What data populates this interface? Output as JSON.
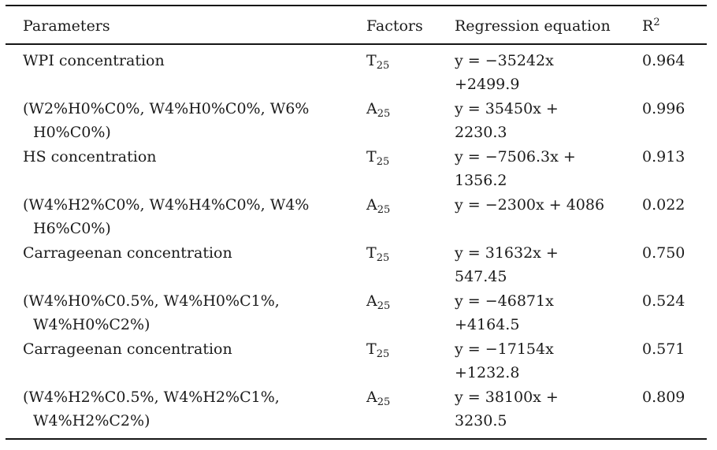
{
  "page": {
    "background": "#ffffff",
    "text_color": "#1b1b1b",
    "rule_color": "#151515"
  },
  "table": {
    "columns": {
      "parameters": "Parameters",
      "factors": "Factors",
      "equation": "Regression equation",
      "r2_base": "R",
      "r2_sup": "2"
    },
    "rows": [
      {
        "param1": "WPI concentration",
        "param2": "",
        "factor": "T",
        "factor_sub": "25",
        "eq1": "y = −35242x",
        "eq2": "+2499.9",
        "r2": "0.964"
      },
      {
        "param1": "(W2%H0%C0%, W4%H0%C0%, W6%",
        "param2": "H0%C0%)",
        "factor": "A",
        "factor_sub": "25",
        "eq1": "y = 35450x +",
        "eq2": "2230.3",
        "r2": "0.996"
      },
      {
        "param1": "HS concentration",
        "param2": "",
        "factor": "T",
        "factor_sub": "25",
        "eq1": "y = −7506.3x +",
        "eq2": "1356.2",
        "r2": "0.913"
      },
      {
        "param1": "(W4%H2%C0%, W4%H4%C0%, W4%",
        "param2": "H6%C0%)",
        "factor": "A",
        "factor_sub": "25",
        "eq1": "y = −2300x + 4086",
        "eq2": "",
        "r2": "0.022"
      },
      {
        "param1": "Carrageenan concentration",
        "param2": "",
        "factor": "T",
        "factor_sub": "25",
        "eq1": "y = 31632x +",
        "eq2": "547.45",
        "r2": "0.750"
      },
      {
        "param1": "(W4%H0%C0.5%, W4%H0%C1%,",
        "param2": "W4%H0%C2%)",
        "factor": "A",
        "factor_sub": "25",
        "eq1": "y = −46871x",
        "eq2": "+4164.5",
        "r2": "0.524"
      },
      {
        "param1": "Carrageenan concentration",
        "param2": "",
        "factor": "T",
        "factor_sub": "25",
        "eq1": "y = −17154x",
        "eq2": "+1232.8",
        "r2": "0.571"
      },
      {
        "param1": "(W4%H2%C0.5%, W4%H2%C1%,",
        "param2": "W4%H2%C2%)",
        "factor": "A",
        "factor_sub": "25",
        "eq1": "y = 38100x +",
        "eq2": "3230.5",
        "r2": "0.809"
      }
    ]
  }
}
